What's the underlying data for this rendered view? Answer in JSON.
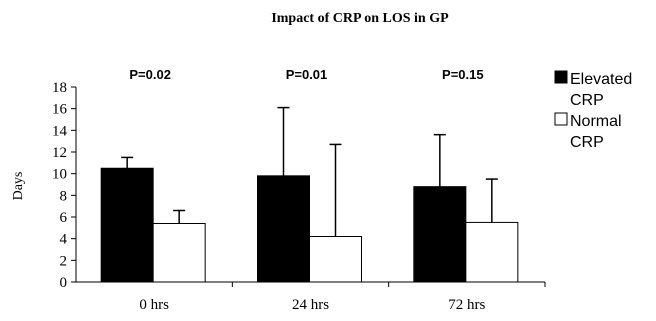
{
  "chart_data": {
    "type": "bar",
    "title": "Impact of CRP on LOS in GP",
    "xlabel": "",
    "ylabel": "Days",
    "ylim": [
      0,
      18
    ],
    "yticks": [
      0,
      2,
      4,
      6,
      8,
      10,
      12,
      14,
      16,
      18
    ],
    "categories": [
      "0 hrs",
      "24 hrs",
      "72 hrs"
    ],
    "series": [
      {
        "name": "Elevated CRP",
        "values": [
          10.5,
          9.8,
          8.8
        ],
        "error_upper": [
          11.5,
          16.1,
          13.6
        ],
        "color": "#000000"
      },
      {
        "name": "Normal CRP",
        "values": [
          5.4,
          4.2,
          5.5
        ],
        "error_upper": [
          6.6,
          12.7,
          9.5
        ],
        "color": "#ffffff"
      }
    ],
    "annotations": [
      "P=0.02",
      "P=0.01",
      "P=0.15"
    ],
    "legend": {
      "position": "top-right"
    },
    "grid": false
  }
}
